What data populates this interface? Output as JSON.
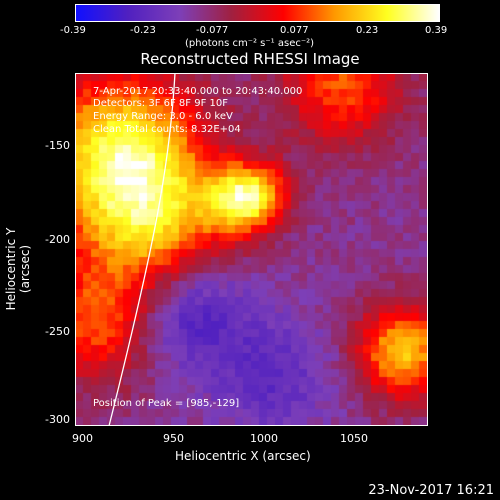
{
  "colorbar": {
    "ticks": [
      "-0.39",
      "-0.23",
      "-0.077",
      "0.077",
      "0.23",
      "0.39"
    ],
    "unit_label": "(photons cm⁻² s⁻¹ asec⁻²)"
  },
  "title": "Reconstructed RHESSI Image",
  "info": {
    "time_line": "7-Apr-2017 20:33:40.000 to 20:43:40.000",
    "detectors_line": "Detectors: 3F 6F 8F 9F 10F",
    "energy_line": "Energy Range: 3.0 - 6.0 keV",
    "clean_line": "Clean    Total counts: 8.32E+04",
    "peak_line": "Position of Peak = [985,-129]"
  },
  "axes": {
    "x_label": "Heliocentric X (arcsec)",
    "y_label": "Heliocentric Y (arcsec)",
    "x_ticks": [
      "900",
      "950",
      "1000",
      "1050"
    ],
    "y_ticks": [
      "-150",
      "-200",
      "-250",
      "-300"
    ]
  },
  "timestamp": "23-Nov-2017 16:21",
  "colors": {
    "colorbar_stops": [
      "#1010ff",
      "#5020c0",
      "#7d3fb8",
      "#a02040",
      "#ff0000",
      "#ff9a00",
      "#ffff20",
      "#ffffff"
    ]
  }
}
